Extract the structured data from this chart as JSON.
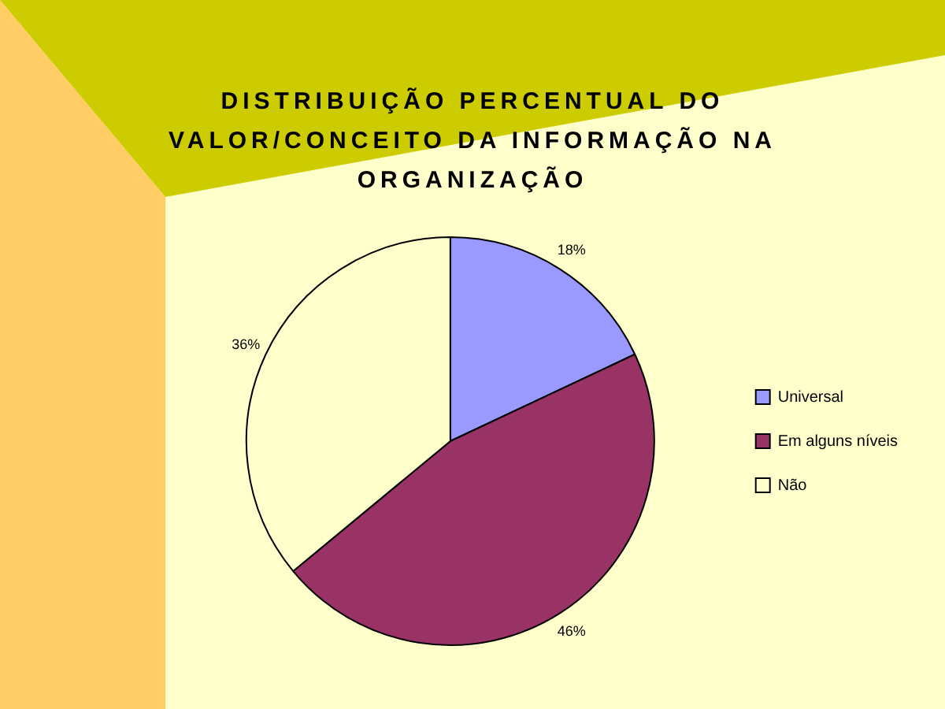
{
  "chart_data": {
    "type": "pie",
    "title": "DISTRIBUIÇÃO PERCENTUAL DO VALOR/CONCEITO DA INFORMAÇÃO NA ORGANIZAÇÃO",
    "categories": [
      "Universal",
      "Em alguns níveis",
      "Não"
    ],
    "values": [
      18,
      46,
      36
    ],
    "value_labels": [
      "18%",
      "46%",
      "36%"
    ],
    "colors": [
      "#9999ff",
      "#993366",
      "#ffffcc"
    ],
    "legend": "right"
  }
}
